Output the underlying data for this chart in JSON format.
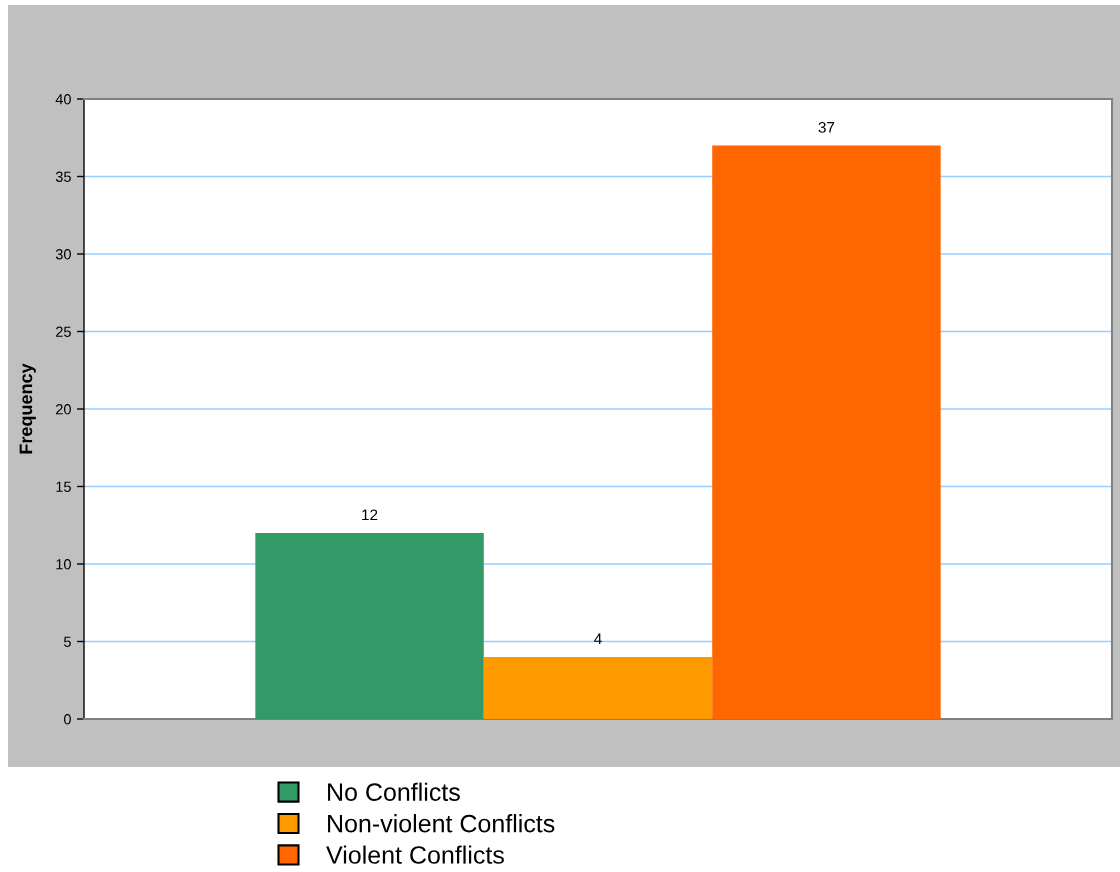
{
  "chart_data": {
    "type": "bar",
    "ylabel": "Frequency",
    "categories": [
      null
    ],
    "series": [
      {
        "name": "No Conflicts",
        "color": "#339966",
        "values": [
          12
        ]
      },
      {
        "name": "Non-violent Conflicts",
        "color": "#ff9900",
        "values": [
          4
        ]
      },
      {
        "name": "Violent Conflicts",
        "color": "#ff6600",
        "values": [
          37
        ]
      }
    ],
    "ylim": [
      0,
      40
    ],
    "yticks": [
      0,
      5,
      10,
      15,
      20,
      25,
      30,
      35,
      40
    ],
    "grid": "y",
    "legend": "bottom",
    "data_labels": true
  }
}
